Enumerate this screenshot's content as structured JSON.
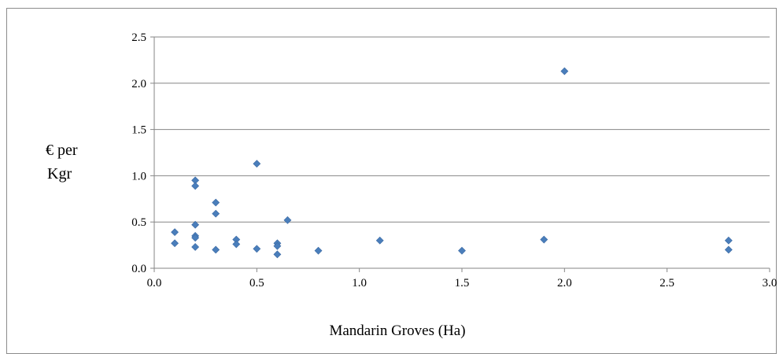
{
  "chart_data": {
    "type": "scatter",
    "title": "",
    "xlabel": "Mandarin Groves (Ha)",
    "ylabel_lines": [
      "€ per",
      "Kgr"
    ],
    "xlim": [
      0,
      3
    ],
    "ylim": [
      0,
      2.5
    ],
    "xticks": [
      0,
      0.5,
      1,
      1.5,
      2,
      2.5,
      3
    ],
    "yticks": [
      0,
      0.5,
      1,
      1.5,
      2,
      2.5
    ],
    "xtick_labels": [
      "0.0",
      "0.5",
      "1.0",
      "1.5",
      "2.0",
      "2.5",
      "3.0"
    ],
    "ytick_labels": [
      "0.0",
      "0.5",
      "1.0",
      "1.5",
      "2.0",
      "2.5"
    ],
    "grid": "horizontal",
    "marker": "diamond",
    "marker_color": "#4a7ebb",
    "points": [
      {
        "x": 0.1,
        "y": 0.39
      },
      {
        "x": 0.1,
        "y": 0.27
      },
      {
        "x": 0.2,
        "y": 0.95
      },
      {
        "x": 0.2,
        "y": 0.89
      },
      {
        "x": 0.2,
        "y": 0.47
      },
      {
        "x": 0.2,
        "y": 0.35
      },
      {
        "x": 0.2,
        "y": 0.33
      },
      {
        "x": 0.2,
        "y": 0.23
      },
      {
        "x": 0.3,
        "y": 0.71
      },
      {
        "x": 0.3,
        "y": 0.59
      },
      {
        "x": 0.3,
        "y": 0.2
      },
      {
        "x": 0.4,
        "y": 0.31
      },
      {
        "x": 0.4,
        "y": 0.26
      },
      {
        "x": 0.5,
        "y": 1.13
      },
      {
        "x": 0.5,
        "y": 0.21
      },
      {
        "x": 0.6,
        "y": 0.27
      },
      {
        "x": 0.6,
        "y": 0.24
      },
      {
        "x": 0.6,
        "y": 0.15
      },
      {
        "x": 0.65,
        "y": 0.52
      },
      {
        "x": 0.8,
        "y": 0.19
      },
      {
        "x": 1.1,
        "y": 0.3
      },
      {
        "x": 1.5,
        "y": 0.19
      },
      {
        "x": 1.9,
        "y": 0.31
      },
      {
        "x": 2.0,
        "y": 2.13
      },
      {
        "x": 2.8,
        "y": 0.3
      },
      {
        "x": 2.8,
        "y": 0.2
      }
    ]
  }
}
